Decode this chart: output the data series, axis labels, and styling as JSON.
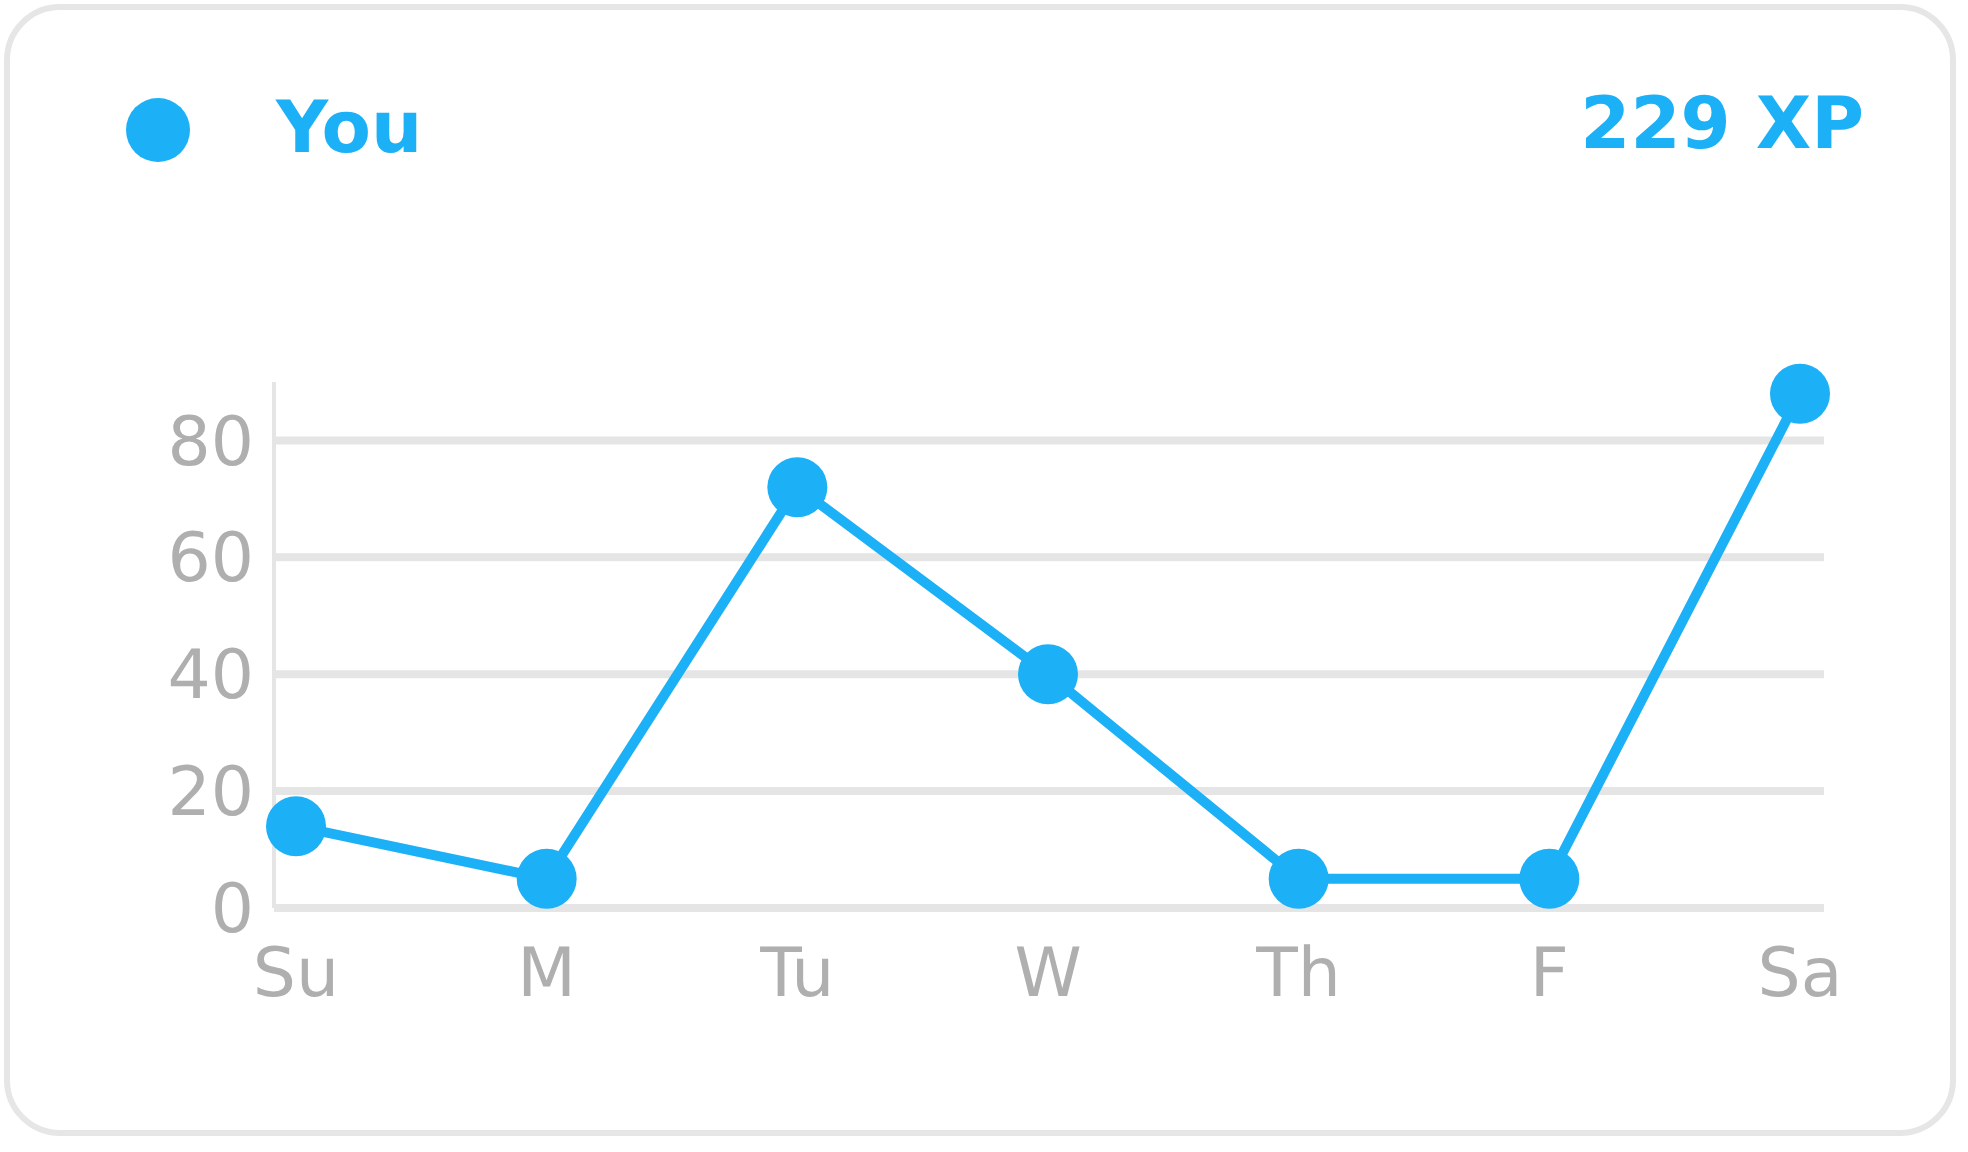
{
  "chart_data": {
    "type": "line",
    "categories": [
      "Su",
      "M",
      "Tu",
      "W",
      "Th",
      "F",
      "Sa"
    ],
    "series": [
      {
        "name": "You",
        "color": "#1cb0f6",
        "values": [
          14,
          5,
          72,
          40,
          5,
          5,
          88
        ]
      }
    ],
    "annotations": [
      "229 XP"
    ],
    "ylim": [
      0,
      90
    ],
    "yticks": [
      0,
      20,
      40,
      60,
      80
    ],
    "grid": "y",
    "legend": "top left",
    "marker": "circle",
    "line_style": "solid"
  }
}
